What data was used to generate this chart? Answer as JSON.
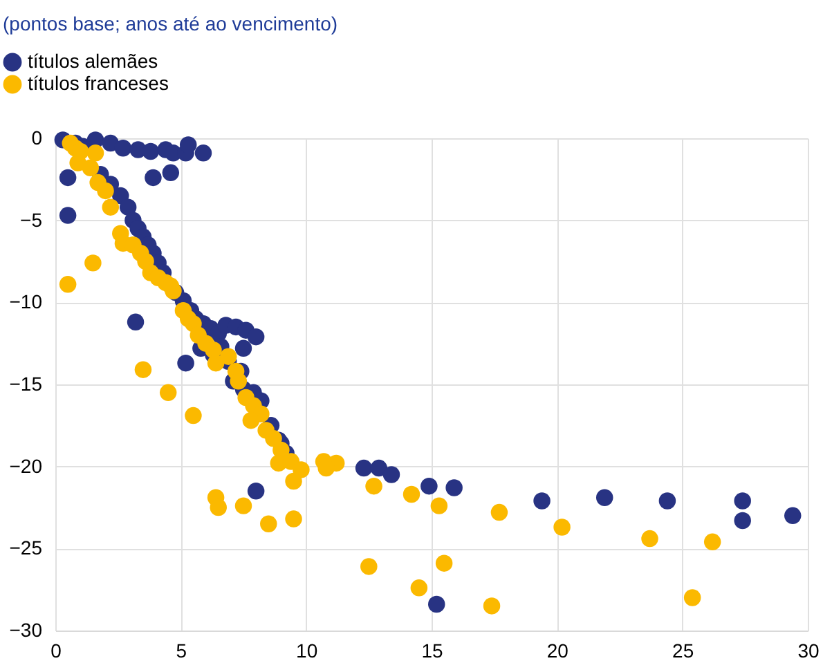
{
  "chart_data": {
    "type": "scatter",
    "title": "(pontos base; anos até ao vencimento)",
    "xlim": [
      0,
      30
    ],
    "xticks": [
      0,
      5,
      10,
      15,
      20,
      25,
      30
    ],
    "ylim": [
      -30,
      0
    ],
    "yticks": [
      -30,
      -25,
      -20,
      -15,
      -10,
      -5,
      0
    ],
    "grid": true,
    "legend": "top left",
    "marker": "circle",
    "series": [
      {
        "name": "títulos alemães",
        "color": "#283383",
        "x": [
          0.3,
          0.8,
          1.1,
          1.6,
          2.2,
          2.7,
          3.3,
          3.8,
          4.4,
          4.7,
          5.2,
          5.3,
          5.9,
          3.9,
          4.6,
          0.5,
          0.5,
          3.2,
          5.2,
          1.8,
          2.2,
          2.6,
          2.9,
          3.1,
          3.3,
          3.5,
          3.7,
          3.9,
          4.1,
          4.3,
          4.8,
          5.1,
          5.4,
          5.6,
          5.9,
          6.2,
          6.5,
          6.8,
          7.2,
          7.6,
          8.0,
          7.5,
          6.6,
          5.8,
          6.3,
          6.9,
          7.1,
          7.4,
          7.5,
          7.9,
          8.2,
          8.6,
          8.9,
          9.0,
          9.2,
          8.0,
          12.3,
          12.9,
          13.4,
          14.9,
          15.9,
          19.4,
          21.9,
          24.4,
          27.4,
          27.4,
          29.4,
          15.2
        ],
        "values": [
          -0.1,
          -0.3,
          -0.5,
          -0.1,
          -0.3,
          -0.6,
          -0.7,
          -0.8,
          -0.7,
          -0.9,
          -0.9,
          -0.4,
          -0.9,
          -2.4,
          -2.1,
          -2.4,
          -4.7,
          -11.2,
          -13.7,
          -2.2,
          -2.8,
          -3.5,
          -4.2,
          -5.0,
          -5.5,
          -6.0,
          -6.5,
          -7.0,
          -7.6,
          -8.2,
          -9.4,
          -9.9,
          -10.5,
          -11.0,
          -11.3,
          -11.6,
          -11.9,
          -11.4,
          -11.5,
          -11.7,
          -12.1,
          -12.8,
          -12.7,
          -12.8,
          -13.2,
          -13.6,
          -14.8,
          -14.2,
          -15.3,
          -15.5,
          -16.0,
          -17.5,
          -18.4,
          -18.6,
          -19.2,
          -21.5,
          -20.1,
          -20.1,
          -20.5,
          -21.2,
          -21.3,
          -22.1,
          -21.9,
          -22.1,
          -22.1,
          -23.3,
          -23.0,
          -28.4
        ]
      },
      {
        "name": "títulos franceses",
        "color": "#fbb900",
        "x": [
          0.6,
          0.8,
          1.0,
          0.9,
          1.4,
          1.6,
          1.7,
          2.0,
          2.2,
          2.6,
          2.7,
          3.1,
          3.4,
          3.6,
          3.8,
          4.1,
          4.4,
          4.6,
          4.7,
          5.1,
          5.3,
          5.5,
          5.7,
          6.0,
          6.3,
          6.4,
          6.9,
          7.2,
          7.3,
          7.6,
          7.9,
          8.2,
          7.8,
          8.4,
          8.7,
          9.0,
          8.9,
          9.4,
          9.8,
          9.5,
          9.5,
          10.7,
          11.2,
          10.8,
          12.7,
          14.2,
          15.3,
          17.7,
          20.2,
          23.7,
          26.2,
          12.5,
          15.5,
          14.5,
          17.4,
          25.4,
          6.4,
          6.5,
          7.5,
          8.5,
          5.5,
          4.5,
          3.5,
          0.5,
          1.5
        ],
        "values": [
          -0.3,
          -0.6,
          -0.8,
          -1.5,
          -1.8,
          -0.9,
          -2.7,
          -3.2,
          -4.2,
          -5.8,
          -6.4,
          -6.5,
          -7.0,
          -7.5,
          -8.2,
          -8.5,
          -8.8,
          -9.0,
          -9.3,
          -10.5,
          -11.0,
          -11.3,
          -12.0,
          -12.5,
          -12.9,
          -13.7,
          -13.3,
          -14.2,
          -14.8,
          -15.8,
          -16.3,
          -16.8,
          -17.2,
          -17.8,
          -18.3,
          -19.0,
          -19.8,
          -19.7,
          -20.2,
          -20.9,
          -23.2,
          -19.7,
          -19.8,
          -20.1,
          -21.2,
          -21.7,
          -22.4,
          -22.8,
          -23.7,
          -24.4,
          -24.6,
          -26.1,
          -25.9,
          -27.4,
          -28.5,
          -28.0,
          -21.9,
          -22.5,
          -22.4,
          -23.5,
          -16.9,
          -15.5,
          -14.1,
          -8.9,
          -7.6
        ]
      }
    ]
  }
}
